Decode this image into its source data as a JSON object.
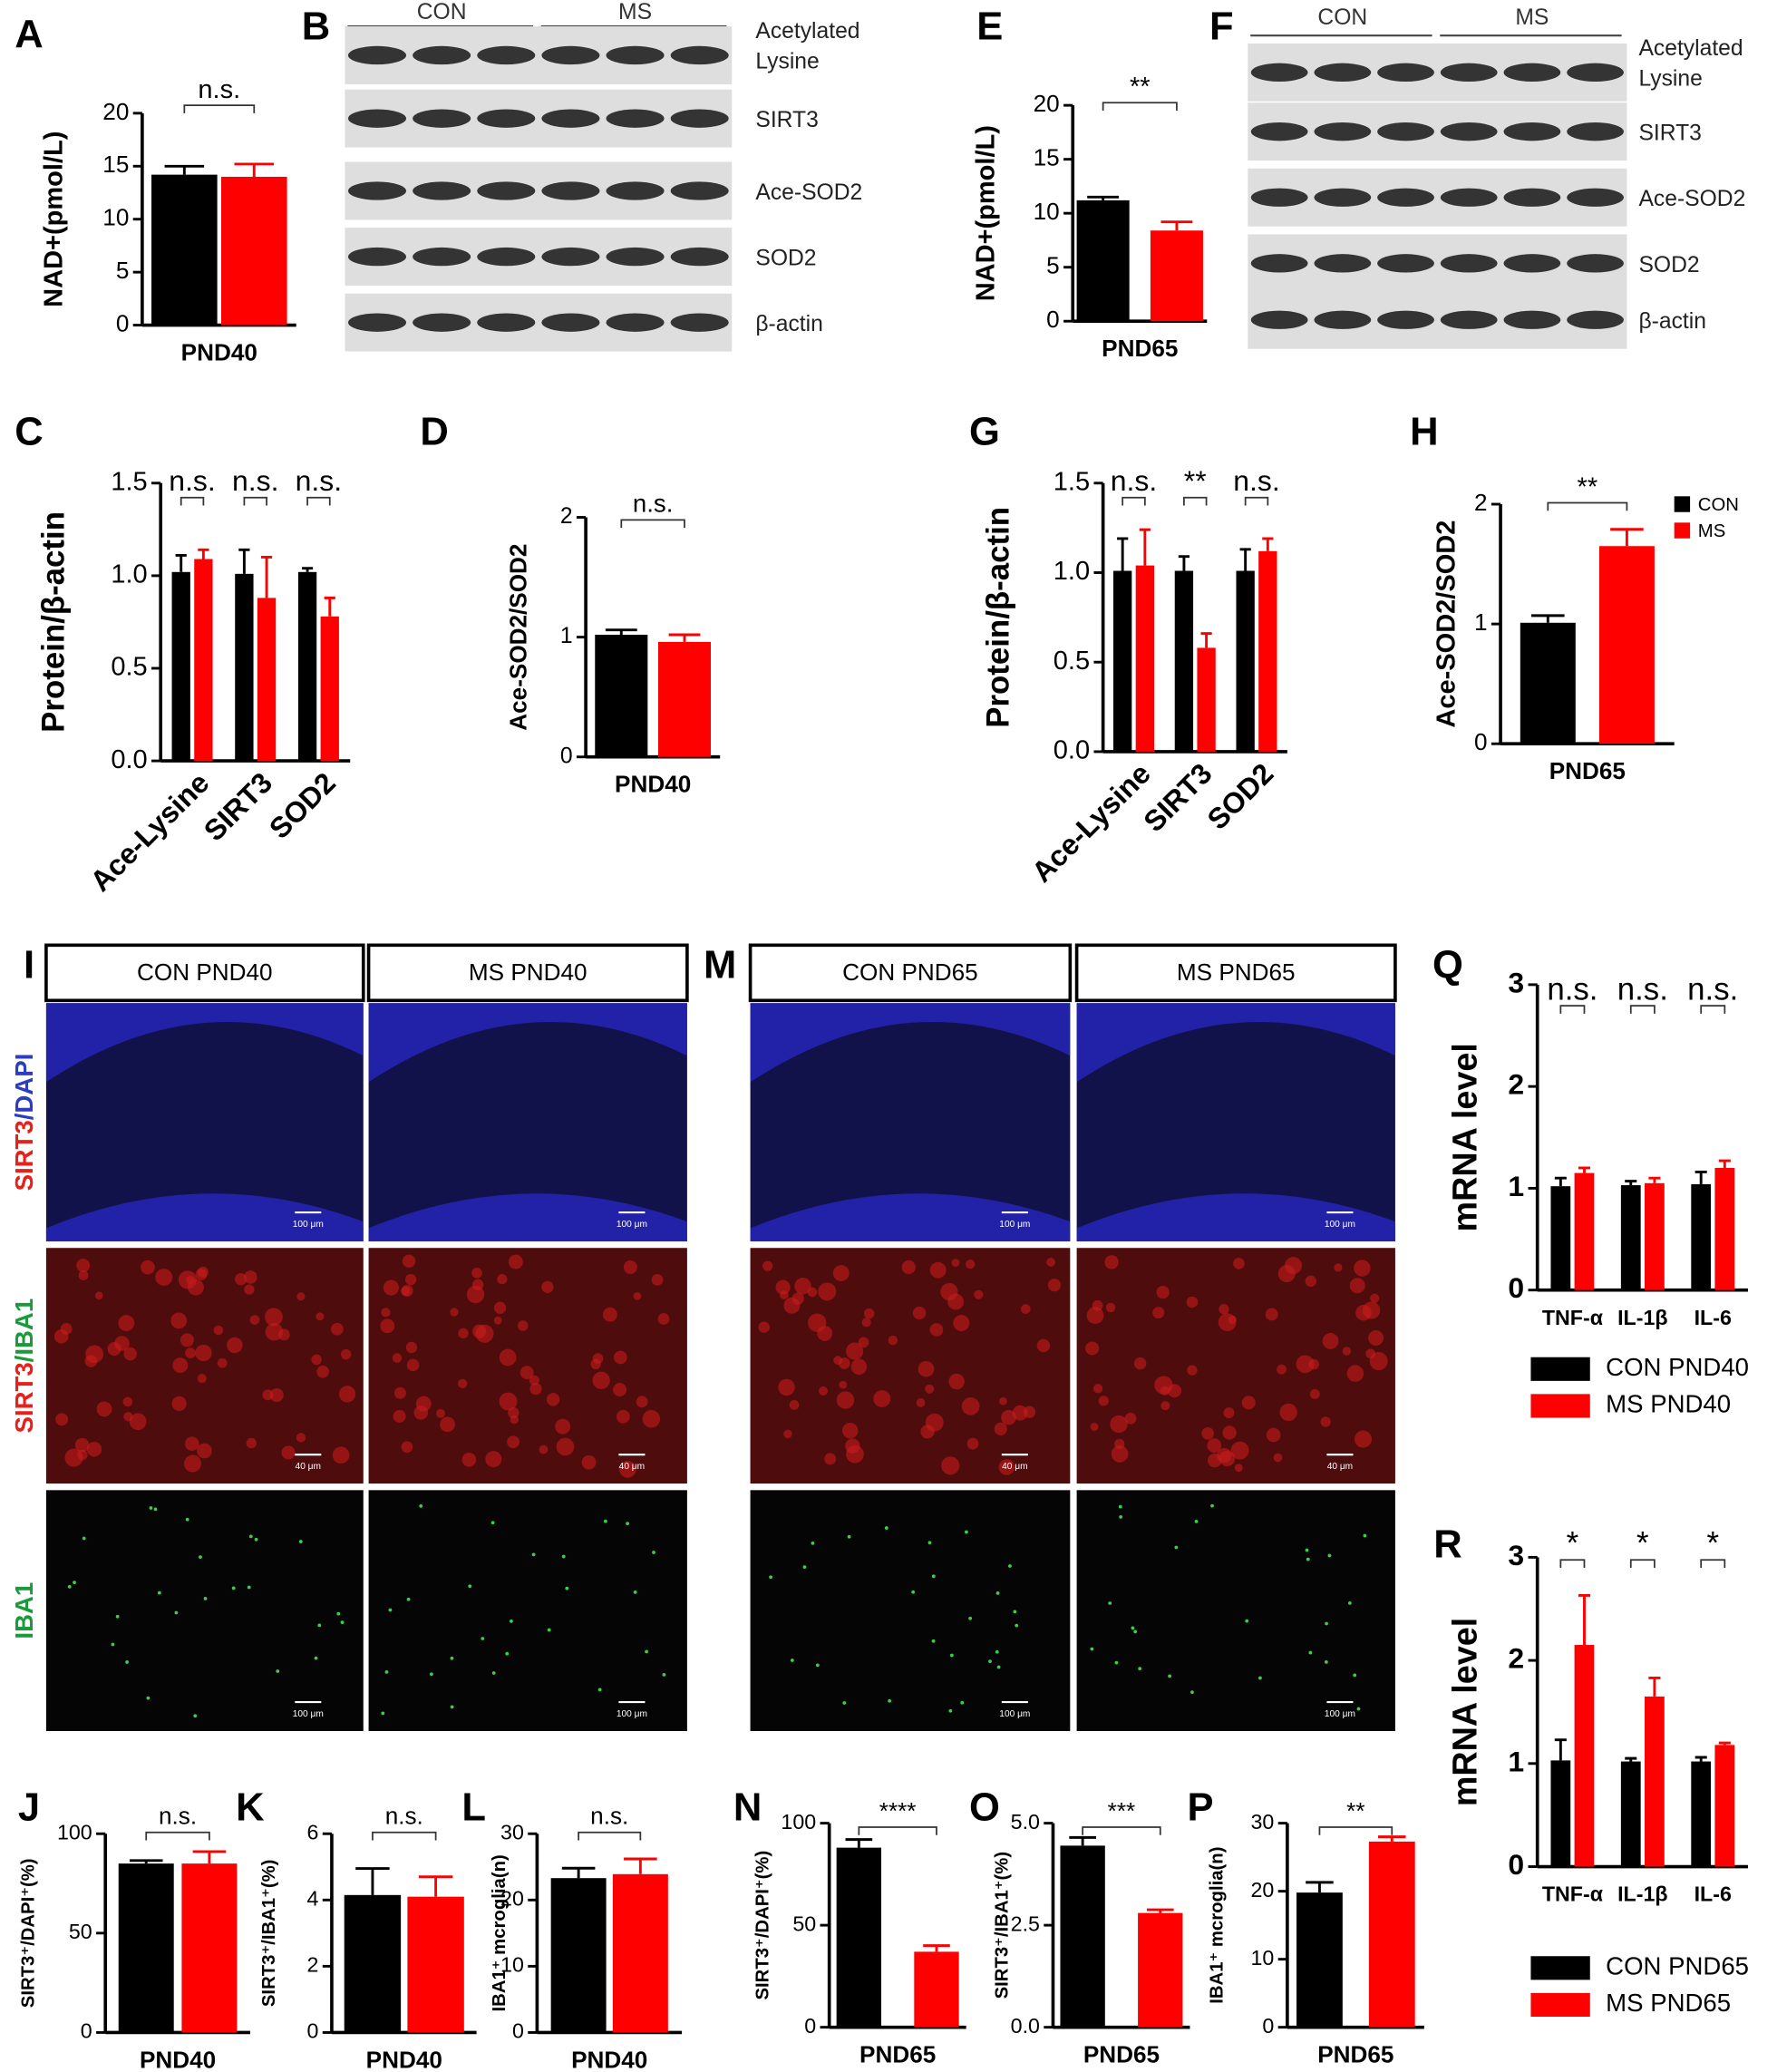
{
  "panel_letters": [
    "A",
    "B",
    "C",
    "D",
    "E",
    "F",
    "G",
    "H",
    "I",
    "J",
    "K",
    "L",
    "M",
    "N",
    "O",
    "P",
    "Q",
    "R"
  ],
  "blots": [
    {
      "groups": [
        "CON",
        "MS"
      ],
      "bands": [
        [
          "Acetylated",
          "Lysine"
        ],
        [
          "SIRT3"
        ],
        [
          "Ace-SOD2"
        ],
        [
          "SOD2"
        ],
        [
          "β-actin"
        ]
      ]
    },
    {
      "groups": [
        "CON",
        "MS"
      ],
      "bands": [
        [
          "Acetylated",
          "Lysine"
        ],
        [
          "SIRT3"
        ],
        [
          "Ace-SOD2"
        ],
        [
          "SOD2"
        ],
        [
          "β-actin"
        ]
      ]
    }
  ],
  "micrographs": [
    {
      "columns": [
        "CON PND40",
        "MS PND40"
      ]
    },
    {
      "columns": [
        "CON PND65",
        "MS PND65"
      ]
    }
  ],
  "micrograph_rows": [
    {
      "label": [
        {
          "text": "SIRT3",
          "color": "#e8201c"
        },
        {
          "text": "/DAPI",
          "color": "#2d3dbd"
        }
      ],
      "scale_bar": "100 μm"
    },
    {
      "label": [
        {
          "text": "SIRT3",
          "color": "#e8201c"
        },
        {
          "text": "/IBA1",
          "color": "#1a9a3a"
        }
      ],
      "scale_bar": "40 μm"
    },
    {
      "label": [
        {
          "text": "IBA1",
          "color": "#1a9a3a"
        }
      ],
      "scale_bar": "100 μm"
    }
  ],
  "chart_data": [
    {
      "type": "bar",
      "ylabel": "NAD+(pmol/L)",
      "categories": [
        "PND40"
      ],
      "series": [
        {
          "color": "#000000",
          "values": [
            14.2
          ],
          "errors": [
            0.8
          ]
        },
        {
          "color": "#ff0000",
          "values": [
            14.0
          ],
          "errors": [
            1.2
          ]
        }
      ],
      "ylim": [
        0,
        20
      ],
      "yticks": [
        0,
        5,
        10,
        15,
        20
      ],
      "annotations": [
        "n.s."
      ]
    },
    {
      "type": "bar",
      "ylabel": "Protein/β-actin",
      "categories": [
        "Ace-Lysine",
        "SIRT3",
        "SOD2"
      ],
      "series": [
        {
          "color": "#000000",
          "values": [
            1.02,
            1.01,
            1.02
          ],
          "errors": [
            0.09,
            0.13,
            0.02
          ]
        },
        {
          "color": "#ff0000",
          "values": [
            1.09,
            0.88,
            0.78
          ],
          "errors": [
            0.05,
            0.22,
            0.1
          ]
        }
      ],
      "ylim": [
        0,
        1.5
      ],
      "yticks": [
        {
          "value": 0,
          "label": "0.0"
        },
        0.5,
        {
          "value": 1,
          "label": "1.0"
        },
        1.5
      ],
      "annotations": [
        "n.s.",
        "n.s.",
        "n.s."
      ]
    },
    {
      "type": "bar",
      "ylabel": "Ace-SOD2/SOD2",
      "categories": [
        "PND40"
      ],
      "series": [
        {
          "color": "#000000",
          "values": [
            1.02
          ],
          "errors": [
            0.04
          ]
        },
        {
          "color": "#ff0000",
          "values": [
            0.96
          ],
          "errors": [
            0.06
          ]
        }
      ],
      "ylim": [
        0,
        2
      ],
      "yticks": [
        0,
        1,
        2
      ],
      "annotations": [
        "n.s."
      ]
    },
    {
      "type": "bar",
      "ylabel": "NAD+(pmol/L)",
      "categories": [
        "PND65"
      ],
      "series": [
        {
          "color": "#000000",
          "values": [
            11.2
          ],
          "errors": [
            0.3
          ]
        },
        {
          "color": "#ff0000",
          "values": [
            8.4
          ],
          "errors": [
            0.8
          ]
        }
      ],
      "ylim": [
        0,
        20
      ],
      "yticks": [
        0,
        5,
        10,
        15,
        20
      ],
      "annotations": [
        "**"
      ]
    },
    {
      "type": "bar",
      "ylabel": "Protein/β-actin",
      "categories": [
        "Ace-Lysine",
        "SIRT3",
        "SOD2"
      ],
      "series": [
        {
          "color": "#000000",
          "values": [
            1.01,
            1.01,
            1.01
          ],
          "errors": [
            0.18,
            0.08,
            0.12
          ]
        },
        {
          "color": "#ff0000",
          "values": [
            1.04,
            0.58,
            1.12
          ],
          "errors": [
            0.2,
            0.08,
            0.07
          ]
        }
      ],
      "ylim": [
        0,
        1.5
      ],
      "yticks": [
        {
          "value": 0,
          "label": "0.0"
        },
        0.5,
        {
          "value": 1,
          "label": "1.0"
        },
        1.5
      ],
      "annotations": [
        "n.s.",
        "**",
        "n.s."
      ]
    },
    {
      "type": "bar",
      "ylabel": "Ace-SOD2/SOD2",
      "categories": [
        "PND65"
      ],
      "series": [
        {
          "name": "CON",
          "color": "#000000",
          "values": [
            1.01
          ],
          "errors": [
            0.06
          ]
        },
        {
          "name": "MS",
          "color": "#ff0000",
          "values": [
            1.65
          ],
          "errors": [
            0.14
          ]
        }
      ],
      "ylim": [
        0,
        2
      ],
      "yticks": [
        0,
        1,
        2
      ],
      "annotations": [
        "**"
      ]
    },
    {
      "type": "bar",
      "ylabel": "SIRT3⁺/DAPI⁺(%)",
      "categories": [
        "PND40"
      ],
      "series": [
        {
          "color": "#000000",
          "values": [
            85
          ],
          "errors": [
            1.5
          ]
        },
        {
          "color": "#ff0000",
          "values": [
            85
          ],
          "errors": [
            6
          ]
        }
      ],
      "ylim": [
        0,
        100
      ],
      "yticks": [
        0,
        50,
        100
      ],
      "annotations": [
        "n.s."
      ]
    },
    {
      "type": "bar",
      "ylabel": "SIRT3⁺/IBA1⁺(%)",
      "categories": [
        "PND40"
      ],
      "series": [
        {
          "color": "#000000",
          "values": [
            4.15
          ],
          "errors": [
            0.8
          ]
        },
        {
          "color": "#ff0000",
          "values": [
            4.1
          ],
          "errors": [
            0.6
          ]
        }
      ],
      "ylim": [
        0,
        6
      ],
      "yticks": [
        0,
        2,
        4,
        6
      ],
      "annotations": [
        "n.s."
      ]
    },
    {
      "type": "bar",
      "ylabel": "IBA1⁺ mcroglia(n)",
      "categories": [
        "PND40"
      ],
      "series": [
        {
          "color": "#000000",
          "values": [
            23.3
          ],
          "errors": [
            1.5
          ]
        },
        {
          "color": "#ff0000",
          "values": [
            23.9
          ],
          "errors": [
            2.3
          ]
        }
      ],
      "ylim": [
        0,
        30
      ],
      "yticks": [
        0,
        10,
        20,
        30
      ],
      "annotations": [
        "n.s."
      ]
    },
    {
      "type": "bar",
      "ylabel": "SIRT3⁺/DAPI⁺(%)",
      "categories": [
        "PND65"
      ],
      "series": [
        {
          "color": "#000000",
          "values": [
            88
          ],
          "errors": [
            4
          ]
        },
        {
          "color": "#ff0000",
          "values": [
            37
          ],
          "errors": [
            3
          ]
        }
      ],
      "ylim": [
        0,
        100
      ],
      "yticks": [
        0,
        50,
        100
      ],
      "annotations": [
        "****"
      ]
    },
    {
      "type": "bar",
      "ylabel": "SIRT3⁺/IBA1⁺(%)",
      "categories": [
        "PND65"
      ],
      "series": [
        {
          "color": "#000000",
          "values": [
            4.45
          ],
          "errors": [
            0.2
          ]
        },
        {
          "color": "#ff0000",
          "values": [
            2.8
          ],
          "errors": [
            0.08
          ]
        }
      ],
      "ylim": [
        0,
        5
      ],
      "yticks": [
        {
          "value": 0,
          "label": "0.0"
        },
        2.5,
        {
          "value": 5,
          "label": "5.0"
        }
      ],
      "annotations": [
        "***"
      ]
    },
    {
      "type": "bar",
      "ylabel": "IBA1⁺ mcroglia(n)",
      "categories": [
        "PND65"
      ],
      "series": [
        {
          "color": "#000000",
          "values": [
            19.8
          ],
          "errors": [
            1.5
          ]
        },
        {
          "color": "#ff0000",
          "values": [
            27.3
          ],
          "errors": [
            0.7
          ]
        }
      ],
      "ylim": [
        0,
        30
      ],
      "yticks": [
        0,
        10,
        20,
        30
      ],
      "annotations": [
        "**"
      ]
    },
    {
      "type": "bar",
      "ylabel": "mRNA level",
      "categories": [
        "TNF-α",
        "IL-1β",
        "IL-6"
      ],
      "series": [
        {
          "name": "CON PND40",
          "color": "#000000",
          "values": [
            1.02,
            1.03,
            1.04
          ],
          "errors": [
            0.08,
            0.04,
            0.12
          ]
        },
        {
          "name": "MS PND40",
          "color": "#ff0000",
          "values": [
            1.15,
            1.05,
            1.2
          ],
          "errors": [
            0.05,
            0.05,
            0.07
          ]
        }
      ],
      "ylim": [
        0,
        3
      ],
      "yticks": [
        0,
        1,
        2,
        3
      ],
      "annotations": [
        "n.s.",
        "n.s.",
        "n.s."
      ]
    },
    {
      "type": "bar",
      "ylabel": "mRNA level",
      "categories": [
        "TNF-α",
        "IL-1β",
        "IL-6"
      ],
      "series": [
        {
          "name": "CON PND65",
          "color": "#000000",
          "values": [
            1.03,
            1.02,
            1.02
          ],
          "errors": [
            0.2,
            0.03,
            0.04
          ]
        },
        {
          "name": "MS PND65",
          "color": "#ff0000",
          "values": [
            2.15,
            1.65,
            1.18
          ],
          "errors": [
            0.48,
            0.18,
            0.02
          ]
        }
      ],
      "ylim": [
        0,
        3
      ],
      "yticks": [
        0,
        1,
        2,
        3
      ],
      "annotations": [
        "*",
        "*",
        "*"
      ]
    }
  ]
}
